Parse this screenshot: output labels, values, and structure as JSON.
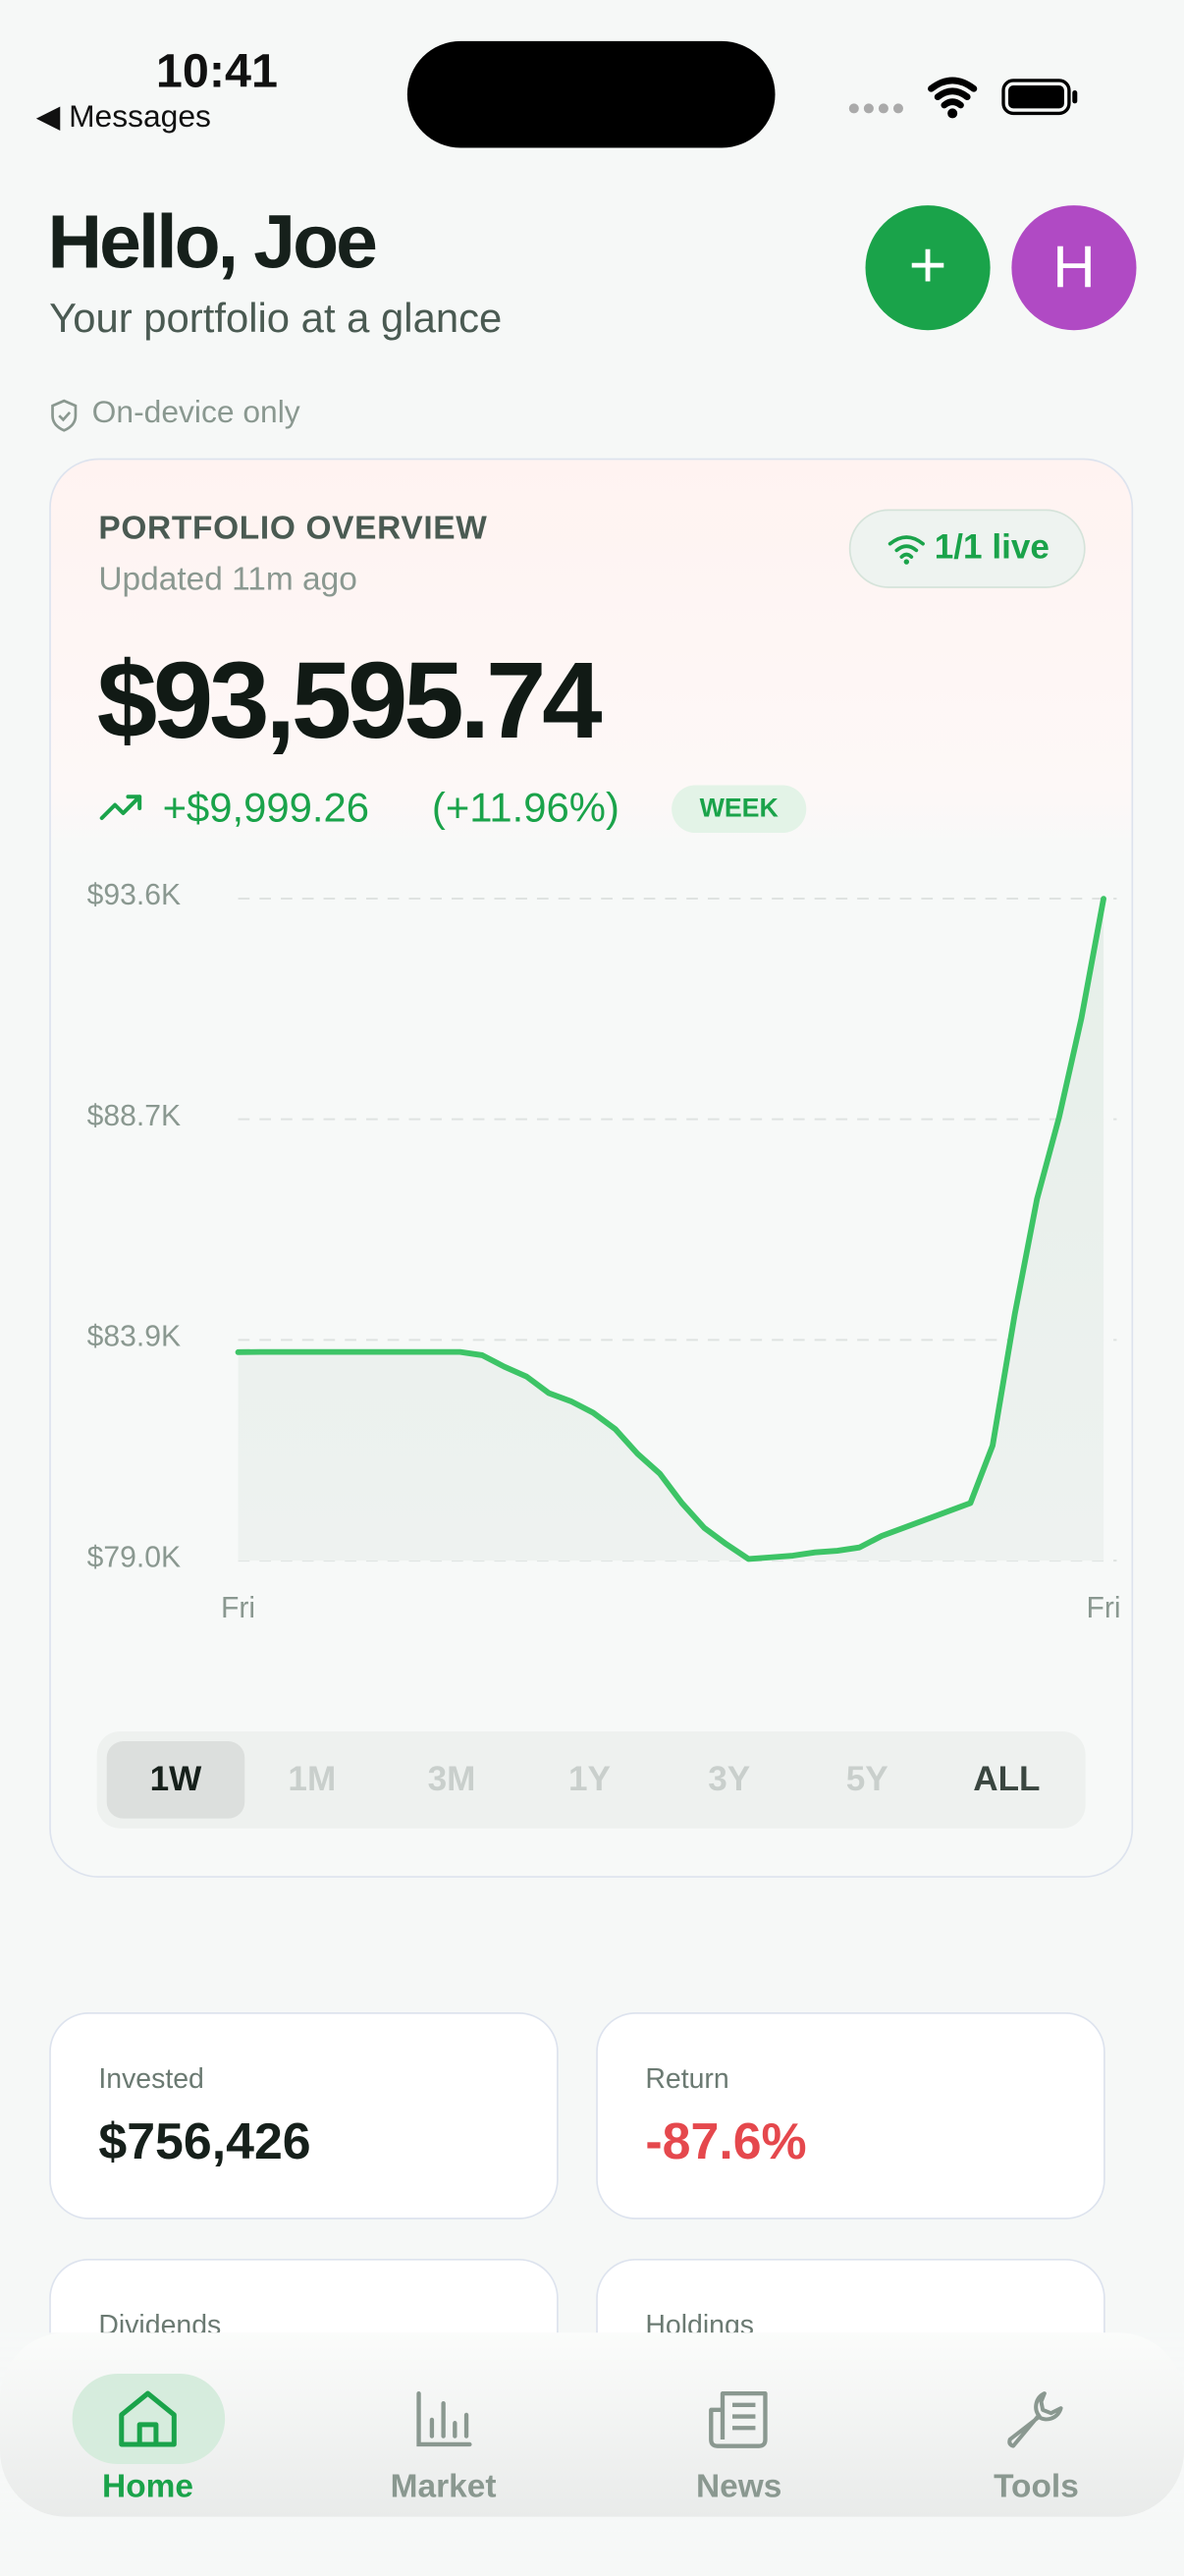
{
  "status_bar": {
    "time": "10:41",
    "back": "Messages"
  },
  "header": {
    "title": "Hello, Joe",
    "subtitle": "Your portfolio at a glance",
    "avatar": "H",
    "privacy": "On-device only"
  },
  "overview": {
    "label": "PORTFOLIO OVERVIEW",
    "updated": "Updated 11m ago",
    "live": "1/1 live",
    "total": "$93,595.74",
    "change": "+$9,999.26",
    "change_pct": "(+11.96%)",
    "period": "WEEK"
  },
  "chart_data": {
    "type": "line",
    "categories": [
      "Fri",
      null,
      null,
      null,
      null,
      null,
      null,
      null,
      null,
      null,
      null,
      null,
      null,
      null,
      null,
      null,
      null,
      null,
      null,
      null,
      null,
      null,
      null,
      null,
      null,
      null,
      null,
      null,
      null,
      null,
      null,
      null,
      null,
      null,
      null,
      null,
      null,
      null,
      null,
      "Fri"
    ],
    "series": [
      {
        "color": "#3dc466",
        "values": [
          83596,
          83601,
          83601,
          83601,
          83601,
          83601,
          83601,
          83601,
          83601,
          83601,
          83601,
          83529,
          83275,
          83058,
          82695,
          82514,
          82261,
          81898,
          81355,
          80920,
          80268,
          79725,
          79362,
          79036,
          79072,
          79109,
          79181,
          79217,
          79290,
          79543,
          79725,
          79906,
          80087,
          80268,
          81536,
          84435,
          86971,
          88782,
          90956,
          93596
        ]
      }
    ],
    "ylim": [
      79000,
      93600
    ],
    "yticks": [
      {
        "value": 79000,
        "label": "$79.0K"
      },
      {
        "value": 83867,
        "label": "$83.9K"
      },
      {
        "value": 88733,
        "label": "$88.7K"
      },
      {
        "value": 93600,
        "label": "$93.6K"
      }
    ],
    "grid": true
  },
  "ranges": [
    "1W",
    "1M",
    "3M",
    "1Y",
    "3Y",
    "5Y",
    "ALL"
  ],
  "stats": [
    {
      "label": "Invested",
      "value": "$756,426"
    },
    {
      "label": "Return",
      "value": "-87.6%"
    },
    {
      "label": "Dividends"
    },
    {
      "label": "Holdings"
    }
  ],
  "tabs": [
    "Home",
    "Market",
    "News",
    "Tools"
  ]
}
